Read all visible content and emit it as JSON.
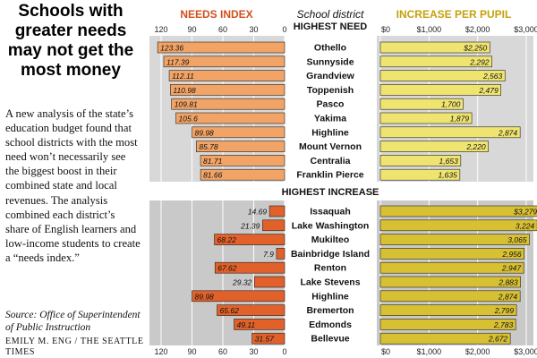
{
  "headline": "Schools with greater needs may not get the most money",
  "description": "A new analysis of the state’s education budget found that school districts with the most need won’t necessarily see the biggest boost in their combined state and local revenues. The analysis combined each district’s share of English learners and low-income students to create a “needs index.”",
  "source": "Source: Office of Superintendent of Public Instruction",
  "credit": "EMILY M. ENG / THE SEATTLE TIMES",
  "colors": {
    "needs_light": "#f2a466",
    "needs_dark": "#e2612a",
    "needs_header": "#d14f1c",
    "increase_light": "#f0e471",
    "increase_dark": "#d8c033",
    "increase_header": "#c4a20c",
    "panel_top": "#d8d8d8",
    "panel_bottom": "#c9c9c9"
  },
  "chart_data": [
    {
      "type": "bar",
      "title": "NEEDS INDEX",
      "column_title": "School district",
      "orientation": "horizontal",
      "direction": "right-to-left",
      "xlim": [
        0,
        120
      ],
      "x_ticks": [
        "120",
        "90",
        "60",
        "30",
        "0"
      ],
      "groups": [
        {
          "label": "HIGHEST NEED",
          "categories": [
            "Othello",
            "Sunnyside",
            "Grandview",
            "Toppenish",
            "Pasco",
            "Yakima",
            "Highline",
            "Mount Vernon",
            "Centralia",
            "Franklin Pierce"
          ],
          "values": [
            123.36,
            117.39,
            112.11,
            110.98,
            109.81,
            105.6,
            89.98,
            85.78,
            81.71,
            81.66
          ],
          "value_labels": [
            "123.36",
            "117.39",
            "112.11",
            "110.98",
            "109.81",
            "105.6",
            "89.98",
            "85.78",
            "81.71",
            "81.66"
          ]
        },
        {
          "label": "HIGHEST INCREASE",
          "categories": [
            "Issaquah",
            "Lake Washington",
            "Mukilteo",
            "Bainbridge Island",
            "Renton",
            "Lake Stevens",
            "Highline",
            "Bremerton",
            "Edmonds",
            "Bellevue"
          ],
          "values": [
            14.69,
            21.39,
            68.22,
            7.9,
            67.62,
            29.32,
            89.98,
            65.62,
            49.11,
            31.57
          ],
          "value_labels": [
            "14.69",
            "21.39",
            "68.22",
            "7.9",
            "67.62",
            "29.32",
            "89.98",
            "65.62",
            "49.11",
            "31.57"
          ]
        }
      ]
    },
    {
      "type": "bar",
      "title": "INCREASE PER PUPIL",
      "orientation": "horizontal",
      "direction": "left-to-right",
      "xlim": [
        0,
        3000
      ],
      "x_ticks": [
        "$0",
        "$1,000",
        "$2,000",
        "$3,000"
      ],
      "groups": [
        {
          "label": "HIGHEST NEED",
          "categories": [
            "Othello",
            "Sunnyside",
            "Grandview",
            "Toppenish",
            "Pasco",
            "Yakima",
            "Highline",
            "Mount Vernon",
            "Centralia",
            "Franklin Pierce"
          ],
          "values": [
            2250,
            2292,
            2563,
            2479,
            1700,
            1879,
            2874,
            2220,
            1653,
            1635
          ],
          "value_labels": [
            "$2,250",
            "2,292",
            "2,563",
            "2,479",
            "1,700",
            "1,879",
            "2,874",
            "2,220",
            "1,653",
            "1,635"
          ]
        },
        {
          "label": "HIGHEST INCREASE",
          "categories": [
            "Issaquah",
            "Lake Washington",
            "Mukilteo",
            "Bainbridge Island",
            "Renton",
            "Lake Stevens",
            "Highline",
            "Bremerton",
            "Edmonds",
            "Bellevue"
          ],
          "values": [
            3279,
            3224,
            3065,
            2956,
            2947,
            2883,
            2874,
            2799,
            2783,
            2672
          ],
          "value_labels": [
            "$3,279",
            "3,224",
            "3,065",
            "2,956",
            "2,947",
            "2,883",
            "2,874",
            "2,799",
            "2,783",
            "2,672"
          ]
        }
      ]
    }
  ]
}
